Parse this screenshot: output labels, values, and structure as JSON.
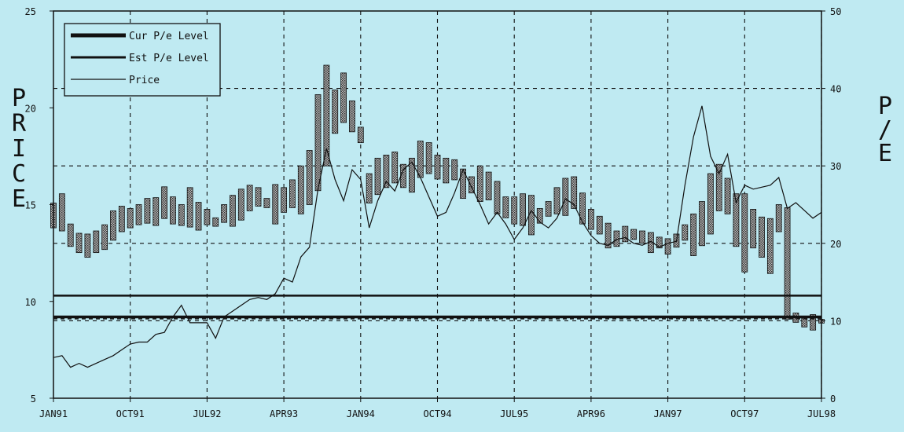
{
  "chart_data": {
    "type": "line",
    "y_left_label": "PRICE",
    "y_right_label": "P/E",
    "x_range": [
      "1991-01",
      "1998-07"
    ],
    "x_ticks": [
      {
        "label": "JAN91",
        "t": 0
      },
      {
        "label": "OCT91",
        "t": 9
      },
      {
        "label": "JUL92",
        "t": 18
      },
      {
        "label": "APR93",
        "t": 27
      },
      {
        "label": "JAN94",
        "t": 36
      },
      {
        "label": "OCT94",
        "t": 45
      },
      {
        "label": "JUL95",
        "t": 54
      },
      {
        "label": "APR96",
        "t": 63
      },
      {
        "label": "JAN97",
        "t": 72
      },
      {
        "label": "OCT97",
        "t": 81
      },
      {
        "label": "JUL98",
        "t": 90
      }
    ],
    "y_left": {
      "min": 5,
      "max": 25,
      "ticks": [
        5,
        10,
        15,
        20,
        25
      ]
    },
    "y_right": {
      "min": 0,
      "max": 50,
      "ticks": [
        0,
        10,
        20,
        30,
        40,
        50
      ]
    },
    "grid": true,
    "legend": {
      "position": "top-left",
      "entries": [
        {
          "label": "Cur P/e Level",
          "style": "thick"
        },
        {
          "label": "Est P/e Level",
          "style": "medium"
        },
        {
          "label": "Price",
          "style": "thin"
        }
      ]
    },
    "reference_lines": {
      "cur_pe_level": 9.2,
      "est_pe_level": 10.3,
      "dashed_level": 9.1
    },
    "series": [
      {
        "name": "Price",
        "axis": "left",
        "t": [
          0,
          1,
          2,
          3,
          4,
          5,
          6,
          7,
          8,
          9,
          10,
          11,
          12,
          13,
          14,
          15,
          16,
          17,
          18,
          19,
          20,
          21,
          22,
          23,
          24,
          25,
          26,
          27,
          28,
          29,
          30,
          31,
          32,
          33,
          34,
          35,
          36,
          37,
          38,
          39,
          40,
          41,
          42,
          43,
          44,
          45,
          46,
          47,
          48,
          49,
          50,
          51,
          52,
          53,
          54,
          55,
          56,
          57,
          58,
          59,
          60,
          61,
          62,
          63,
          64,
          65,
          66,
          67,
          68,
          69,
          70,
          71,
          72,
          73,
          74,
          75,
          76,
          77,
          78,
          79,
          80,
          81,
          82,
          83,
          84,
          85,
          86,
          87,
          88,
          89,
          90
        ],
        "values": [
          7.1,
          7.2,
          6.6,
          6.8,
          6.6,
          6.8,
          7.0,
          7.2,
          7.5,
          7.8,
          7.9,
          7.9,
          8.3,
          8.4,
          9.2,
          9.8,
          8.9,
          8.9,
          8.9,
          8.1,
          9.2,
          9.5,
          9.8,
          10.1,
          10.2,
          10.1,
          10.4,
          11.2,
          11.0,
          12.3,
          12.8,
          15.8,
          17.9,
          16.3,
          15.2,
          16.8,
          16.3,
          13.8,
          15.2,
          16.2,
          15.7,
          16.8,
          17.2,
          16.4,
          15.4,
          14.4,
          14.6,
          15.6,
          16.8,
          15.9,
          15.0,
          14.0,
          14.6,
          14.0,
          13.2,
          13.8,
          14.7,
          14.1,
          13.8,
          14.3,
          15.3,
          15.0,
          14.1,
          13.4,
          13.0,
          12.9,
          13.2,
          13.3,
          13.0,
          12.9,
          13.1,
          12.8,
          13.0,
          13.1,
          16.0,
          18.5,
          20.1,
          17.5,
          16.6,
          17.6,
          15.1,
          16.0,
          15.8,
          15.9,
          16.0,
          16.4,
          14.8,
          15.1,
          14.7,
          14.3,
          14.6
        ]
      },
      {
        "name": "P/E",
        "axis": "right",
        "type": "bar-range",
        "t": [
          0,
          1,
          2,
          3,
          4,
          5,
          6,
          7,
          8,
          9,
          10,
          11,
          12,
          13,
          14,
          15,
          16,
          17,
          18,
          19,
          20,
          21,
          22,
          23,
          24,
          25,
          26,
          27,
          28,
          29,
          30,
          31,
          32,
          33,
          34,
          35,
          36,
          37,
          38,
          39,
          40,
          41,
          42,
          43,
          44,
          45,
          46,
          47,
          48,
          49,
          50,
          51,
          52,
          53,
          54,
          55,
          56,
          57,
          58,
          59,
          60,
          61,
          62,
          63,
          64,
          65,
          66,
          67,
          68,
          69,
          70,
          71,
          72,
          73,
          74,
          75,
          76,
          77,
          78,
          79,
          80,
          81,
          82,
          83,
          84,
          85,
          86,
          87,
          88,
          89,
          90
        ],
        "low": [
          22,
          21.6,
          19.6,
          18.8,
          18.2,
          18.8,
          19.2,
          20.4,
          21.5,
          22,
          22.4,
          22.6,
          22.3,
          23.2,
          22.5,
          22.3,
          22.1,
          21.7,
          22.4,
          22.2,
          22.7,
          22.2,
          23.0,
          24.2,
          24.8,
          24.6,
          22.5,
          24,
          24.6,
          23.8,
          25,
          26.8,
          30,
          34.2,
          35.6,
          34.4,
          33,
          25.2,
          26.3,
          27.2,
          27.8,
          27.2,
          26.6,
          28.5,
          29,
          28.3,
          27.8,
          28.2,
          25.8,
          26.5,
          25.4,
          25.6,
          23.8,
          23.3,
          22.5,
          22.3,
          21.1,
          22.6,
          23.5,
          23.8,
          23.6,
          24.5,
          22.5,
          21.8,
          21.2,
          19.4,
          19.6,
          20.2,
          20.5,
          20.0,
          18.8,
          19.4,
          18.6,
          19.5,
          20.4,
          18.4,
          19.7,
          21.2,
          24.2,
          23.8,
          19.6,
          16.3,
          19.4,
          18.2,
          16.1,
          21.5,
          10.2,
          9.8,
          9.2,
          8.8,
          9.7
        ],
        "high": [
          25.2,
          26.4,
          22.5,
          21.3,
          21.2,
          21.6,
          22.4,
          24.2,
          24.8,
          24.5,
          25.0,
          25.8,
          25.9,
          27.3,
          26.0,
          25.0,
          27.2,
          25.3,
          24.4,
          23.3,
          25.0,
          26.2,
          27.0,
          27.5,
          27.2,
          25.8,
          27.6,
          27.2,
          28.2,
          30.0,
          32.0,
          39.2,
          43.0,
          39.8,
          42.0,
          38.4,
          35.0,
          29.0,
          31.0,
          31.4,
          31.8,
          30.2,
          31.0,
          33.2,
          33.0,
          31.4,
          31.0,
          30.8,
          29.6,
          28.6,
          30.0,
          29.2,
          28.0,
          26.0,
          26.0,
          26.4,
          26.2,
          24.5,
          25.4,
          27.2,
          28.4,
          28.6,
          26.5,
          24.4,
          23.5,
          22.6,
          21.6,
          22.2,
          21.8,
          21.6,
          21.4,
          20.8,
          20.6,
          21.2,
          22.4,
          23.8,
          25.4,
          29.0,
          30.2,
          28.4,
          26.4,
          26.4,
          24.4,
          23.4,
          23.2,
          25.0,
          24.6,
          11.0,
          10.4,
          10.8,
          10.2
        ]
      }
    ]
  }
}
